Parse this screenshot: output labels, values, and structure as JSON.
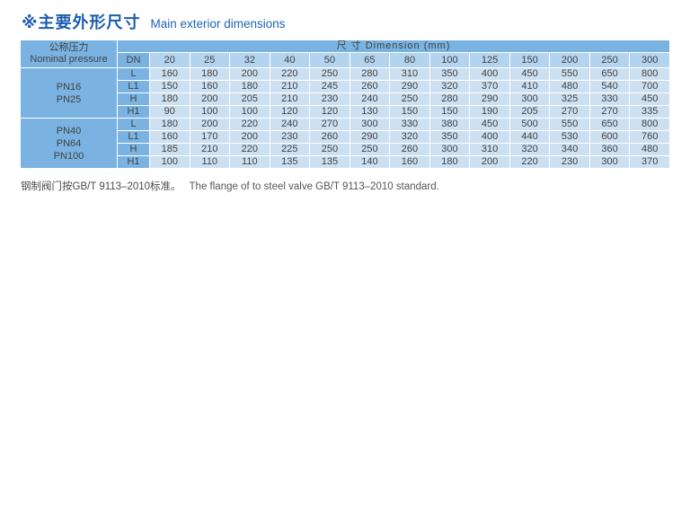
{
  "title": {
    "zh": "※主要外形尺寸",
    "en": "Main exterior dimensions"
  },
  "table": {
    "left_header": {
      "zh": "公称压力",
      "en": "Nominal pressure"
    },
    "dim_header": "尺 寸 Dimension (mm)",
    "dn_label": "DN",
    "dn_values": [
      "20",
      "25",
      "32",
      "40",
      "50",
      "65",
      "80",
      "100",
      "125",
      "150",
      "200",
      "250",
      "300"
    ],
    "groups": [
      {
        "pressure": [
          "PN16",
          "PN25"
        ],
        "rows": [
          {
            "label": "L",
            "values": [
              "160",
              "180",
              "200",
              "220",
              "250",
              "280",
              "310",
              "350",
              "400",
              "450",
              "550",
              "650",
              "800"
            ]
          },
          {
            "label": "L1",
            "values": [
              "150",
              "160",
              "180",
              "210",
              "245",
              "260",
              "290",
              "320",
              "370",
              "410",
              "480",
              "540",
              "700"
            ]
          },
          {
            "label": "H",
            "values": [
              "180",
              "200",
              "205",
              "210",
              "230",
              "240",
              "250",
              "280",
              "290",
              "300",
              "325",
              "330",
              "450"
            ]
          },
          {
            "label": "H1",
            "values": [
              "90",
              "100",
              "100",
              "120",
              "120",
              "130",
              "150",
              "150",
              "190",
              "205",
              "270",
              "270",
              "335"
            ]
          }
        ]
      },
      {
        "pressure": [
          "PN40",
          "PN64",
          "PN100"
        ],
        "rows": [
          {
            "label": "L",
            "values": [
              "180",
              "200",
              "220",
              "240",
              "270",
              "300",
              "330",
              "380",
              "450",
              "500",
              "550",
              "650",
              "800"
            ]
          },
          {
            "label": "L1",
            "values": [
              "160",
              "170",
              "200",
              "230",
              "260",
              "290",
              "320",
              "350",
              "400",
              "440",
              "530",
              "600",
              "760"
            ]
          },
          {
            "label": "H",
            "values": [
              "185",
              "210",
              "220",
              "225",
              "250",
              "250",
              "260",
              "300",
              "310",
              "320",
              "340",
              "360",
              "480"
            ]
          },
          {
            "label": "H1",
            "values": [
              "100",
              "110",
              "110",
              "135",
              "135",
              "140",
              "160",
              "180",
              "200",
              "220",
              "230",
              "300",
              "370"
            ]
          }
        ]
      }
    ]
  },
  "footer": {
    "zh": "钢制阀门按GB/T 9113–2010标准。",
    "en": "The flange of to steel valve GB/T 9113–2010 standard."
  },
  "colors": {
    "header_blue": "#7ab3e1",
    "dn_row_blue": "#b3d3ee",
    "cell_blue": "#cde0f2",
    "title_blue": "#1b5cb0",
    "text_dark": "#414141"
  }
}
